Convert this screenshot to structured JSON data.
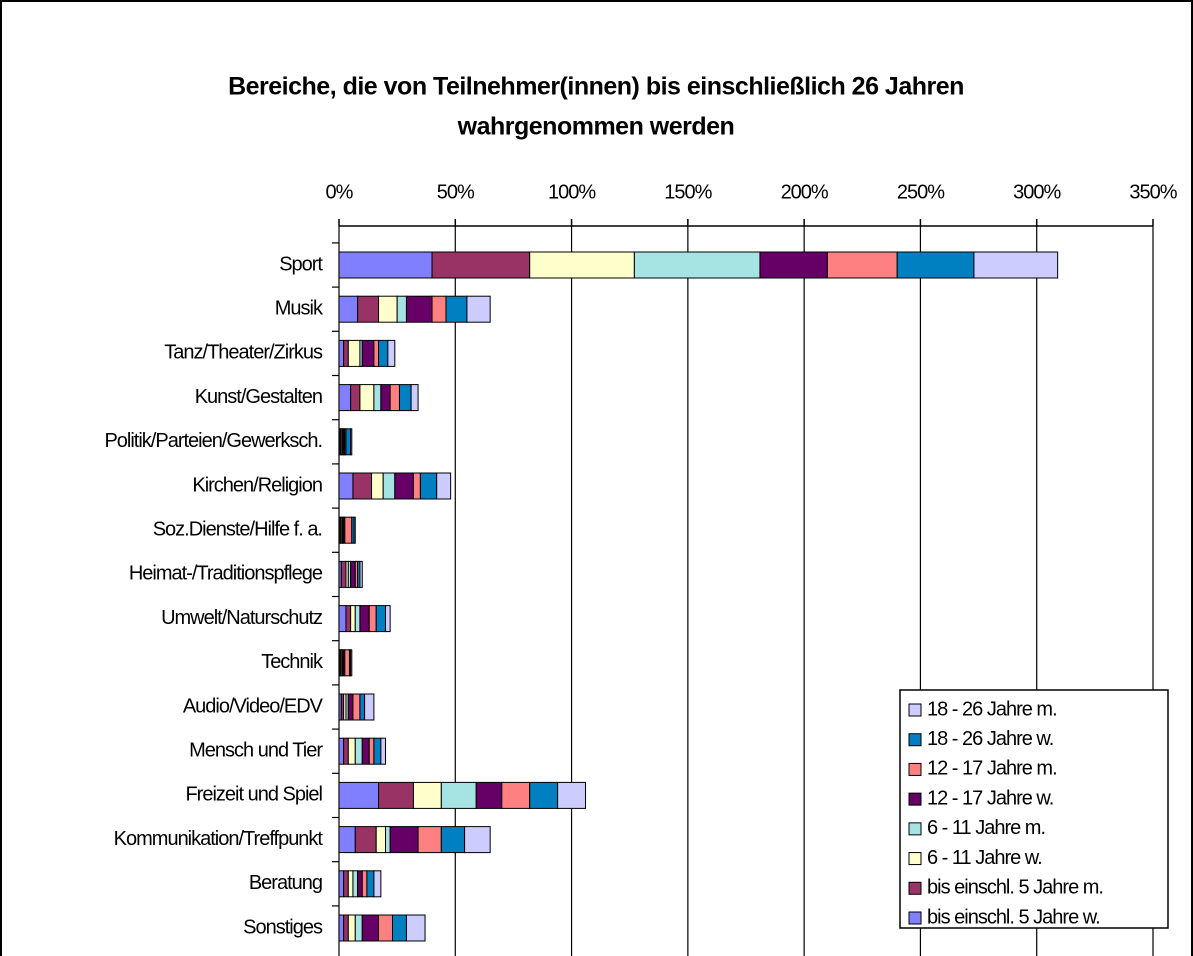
{
  "chart_data": {
    "type": "stacked_barh",
    "title": "Bereiche, die von Teilnehmer(innen) bis einschließlich 26 Jahren",
    "subtitle": "wahrgenommen werden",
    "categories": [
      "Sport",
      "Musik",
      "Tanz/Theater/Zirkus",
      "Kunst/Gestalten",
      "Politik/Parteien/Gewerksch.",
      "Kirchen/Religion",
      "Soz.Dienste/Hilfe f. a.",
      "Heimat-/Traditionspflege",
      "Umwelt/Naturschutz",
      "Technik",
      "Audio/Video/EDV",
      "Mensch und Tier",
      "Freizeit und Spiel",
      "Kommunikation/Treffpunkt",
      "Beratung",
      "Sonstiges"
    ],
    "series": [
      {
        "name": "bis einschl. 5 Jahre w.",
        "color": "#8080ff",
        "values": [
          40,
          8,
          2,
          5,
          0.5,
          6,
          0.5,
          1,
          3,
          0.5,
          1,
          2,
          17,
          7,
          2,
          2
        ]
      },
      {
        "name": "bis einschl. 5 Jahre m.",
        "color": "#993366",
        "values": [
          42,
          9,
          2,
          4,
          0.5,
          8,
          0.5,
          2,
          2,
          0.5,
          1,
          2,
          15,
          9,
          2,
          2
        ]
      },
      {
        "name": "6 - 11 Jahre w.",
        "color": "#ffffcc",
        "values": [
          45,
          8,
          5,
          6,
          0.5,
          5,
          0.5,
          1,
          2,
          0.5,
          1,
          3,
          12,
          4,
          2,
          3
        ]
      },
      {
        "name": "6 - 11 Jahre m.",
        "color": "#a6e3e3",
        "values": [
          54,
          4,
          1,
          3,
          0.5,
          5,
          0.5,
          1,
          2,
          0.5,
          1,
          3,
          15,
          2,
          2,
          3
        ]
      },
      {
        "name": "12 - 17 Jahre w.",
        "color": "#660066",
        "values": [
          29,
          11,
          5,
          4,
          0.5,
          8,
          0.5,
          2,
          4,
          0.5,
          2,
          3,
          11,
          12,
          2,
          7
        ]
      },
      {
        "name": "12 - 17 Jahre m.",
        "color": "#ff8080",
        "values": [
          30,
          6,
          2,
          4,
          0.5,
          3,
          3,
          1,
          3,
          2,
          3,
          2,
          12,
          10,
          2,
          6
        ]
      },
      {
        "name": "18 - 26 Jahre w.",
        "color": "#0080c0",
        "values": [
          33,
          9,
          4,
          5,
          2,
          7,
          1,
          1,
          4,
          0.5,
          2,
          3,
          12,
          10,
          3,
          6
        ]
      },
      {
        "name": "18 - 26 Jahre m.",
        "color": "#ccccff",
        "values": [
          36,
          10,
          3,
          3,
          0.5,
          6,
          0.5,
          1,
          2,
          0.5,
          4,
          2,
          12,
          11,
          3,
          8
        ]
      }
    ],
    "xlim": [
      0,
      350
    ],
    "xticks": [
      {
        "value": 0,
        "label": "0%"
      },
      {
        "value": 50,
        "label": "50%"
      },
      {
        "value": 100,
        "label": "100%"
      },
      {
        "value": 150,
        "label": "150%"
      },
      {
        "value": 200,
        "label": "200%"
      },
      {
        "value": 250,
        "label": "250%"
      },
      {
        "value": 300,
        "label": "300%"
      },
      {
        "value": 350,
        "label": "350%"
      }
    ],
    "grid": true,
    "legend": "right"
  }
}
